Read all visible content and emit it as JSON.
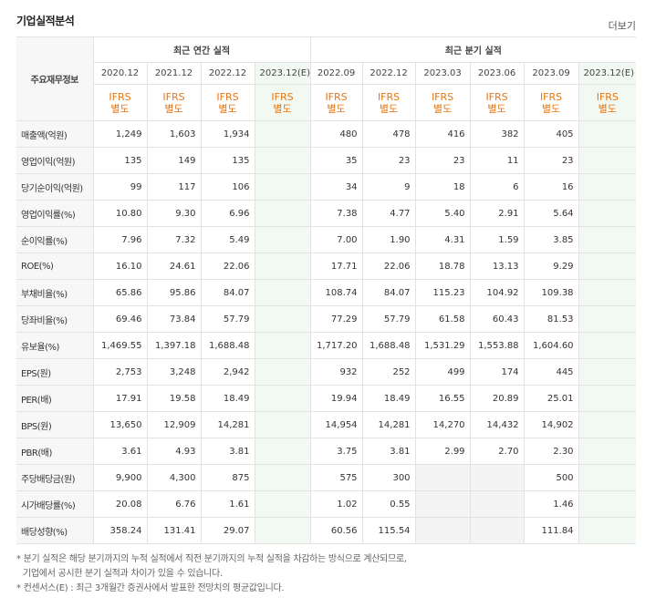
{
  "header": {
    "title": "기업실적분석",
    "more": "더보기"
  },
  "table": {
    "corner": "주요재무정보",
    "groups": [
      "최근 연간 실적",
      "최근 분기 실적"
    ],
    "periods": [
      "2020.12",
      "2021.12",
      "2022.12",
      "2023.12(E)",
      "2022.09",
      "2022.12",
      "2023.03",
      "2023.06",
      "2023.09",
      "2023.12(E)"
    ],
    "standards": [
      [
        "IFRS",
        "별도"
      ],
      [
        "IFRS",
        "별도"
      ],
      [
        "IFRS",
        "별도"
      ],
      [
        "IFRS",
        "별도"
      ],
      [
        "IFRS",
        "별도"
      ],
      [
        "IFRS",
        "별도"
      ],
      [
        "IFRS",
        "별도"
      ],
      [
        "IFRS",
        "별도"
      ],
      [
        "IFRS",
        "별도"
      ],
      [
        "IFRS",
        "별도"
      ]
    ],
    "rows": [
      {
        "name": "매출액(억원)",
        "values": [
          "1,249",
          "1,603",
          "1,934",
          null,
          "480",
          "478",
          "416",
          "382",
          "405",
          null
        ]
      },
      {
        "name": "영업이익(억원)",
        "values": [
          "135",
          "149",
          "135",
          null,
          "35",
          "23",
          "23",
          "11",
          "23",
          null
        ]
      },
      {
        "name": "당기순이익(억원)",
        "values": [
          "99",
          "117",
          "106",
          null,
          "34",
          "9",
          "18",
          "6",
          "16",
          null
        ]
      },
      {
        "name": "영업이익률(%)",
        "values": [
          "10.80",
          "9.30",
          "6.96",
          null,
          "7.38",
          "4.77",
          "5.40",
          "2.91",
          "5.64",
          null
        ]
      },
      {
        "name": "순이익률(%)",
        "values": [
          "7.96",
          "7.32",
          "5.49",
          null,
          "7.00",
          "1.90",
          "4.31",
          "1.59",
          "3.85",
          null
        ]
      },
      {
        "name": "ROE(%)",
        "values": [
          "16.10",
          "24.61",
          "22.06",
          null,
          "17.71",
          "22.06",
          "18.78",
          "13.13",
          "9.29",
          null
        ]
      },
      {
        "name": "부채비율(%)",
        "values": [
          "65.86",
          "95.86",
          "84.07",
          null,
          "108.74",
          "84.07",
          "115.23",
          "104.92",
          "109.38",
          null
        ]
      },
      {
        "name": "당좌비율(%)",
        "values": [
          "69.46",
          "73.84",
          "57.79",
          null,
          "77.29",
          "57.79",
          "61.58",
          "60.43",
          "81.53",
          null
        ]
      },
      {
        "name": "유보율(%)",
        "values": [
          "1,469.55",
          "1,397.18",
          "1,688.48",
          null,
          "1,717.20",
          "1,688.48",
          "1,531.29",
          "1,553.88",
          "1,604.60",
          null
        ]
      },
      {
        "name": "EPS(원)",
        "values": [
          "2,753",
          "3,248",
          "2,942",
          null,
          "932",
          "252",
          "499",
          "174",
          "445",
          null
        ]
      },
      {
        "name": "PER(배)",
        "values": [
          "17.91",
          "19.58",
          "18.49",
          null,
          "19.94",
          "18.49",
          "16.55",
          "20.89",
          "25.01",
          null
        ]
      },
      {
        "name": "BPS(원)",
        "values": [
          "13,650",
          "12,909",
          "14,281",
          null,
          "14,954",
          "14,281",
          "14,270",
          "14,432",
          "14,902",
          null
        ]
      },
      {
        "name": "PBR(배)",
        "values": [
          "3.61",
          "4.93",
          "3.81",
          null,
          "3.75",
          "3.81",
          "2.99",
          "2.70",
          "2.30",
          null
        ]
      },
      {
        "name": "주당배당금(원)",
        "values": [
          "9,900",
          "4,300",
          "875",
          null,
          "575",
          "300",
          null,
          null,
          "500",
          null
        ]
      },
      {
        "name": "시가배당률(%)",
        "values": [
          "20.08",
          "6.76",
          "1.61",
          null,
          "1.02",
          "0.55",
          null,
          null,
          "1.46",
          null
        ]
      },
      {
        "name": "배당성향(%)",
        "values": [
          "358.24",
          "131.41",
          "29.07",
          null,
          "60.56",
          "115.54",
          null,
          null,
          "111.84",
          null
        ]
      }
    ]
  },
  "notes": [
    "* 분기 실적은 해당 분기까지의 누적 실적에서 직전 분기까지의 누적 실적을 차감하는 방식으로 계산되므로,",
    "기업에서 공시한 분기 실적과 차이가 있을 수 있습니다.",
    "* 컨센서스(E) : 최근 3개월간 증권사에서 발표한 전망치의 평균값입니다."
  ]
}
